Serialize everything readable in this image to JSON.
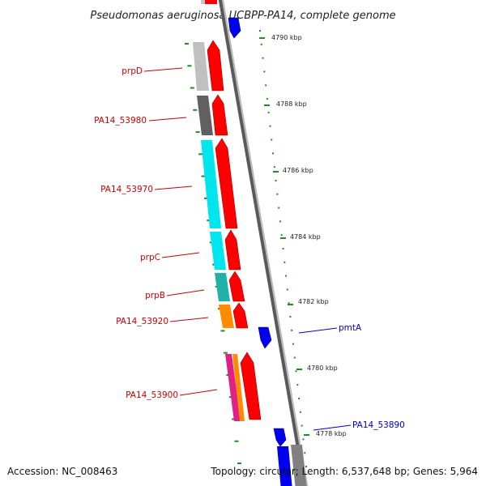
{
  "title": "Pseudomonas aeruginosa UCBPP-PA14, complete genome",
  "footer": {
    "accession": "Accession: NC_008463",
    "topology": "Topology: circular; Length: 6,537,648 bp; Genes: 5,964"
  },
  "colors": {
    "forward_strand": "#ff0000",
    "reverse_strand": "#0000ff",
    "left_label": "#cc0000",
    "right_label": "#0000cc",
    "tick": "#228b22"
  },
  "kbp_labels": [
    "4790 kbp",
    "4788 kbp",
    "4786 kbp",
    "4784 kbp",
    "4782 kbp",
    "4780 kbp",
    "4778 kbp"
  ],
  "left_genes": [
    "prpD",
    "PA14_53980",
    "PA14_53970",
    "prpC",
    "prpB",
    "PA14_53920",
    "PA14_53900"
  ],
  "right_genes": [
    "pmtA",
    "PA14_53890"
  ]
}
